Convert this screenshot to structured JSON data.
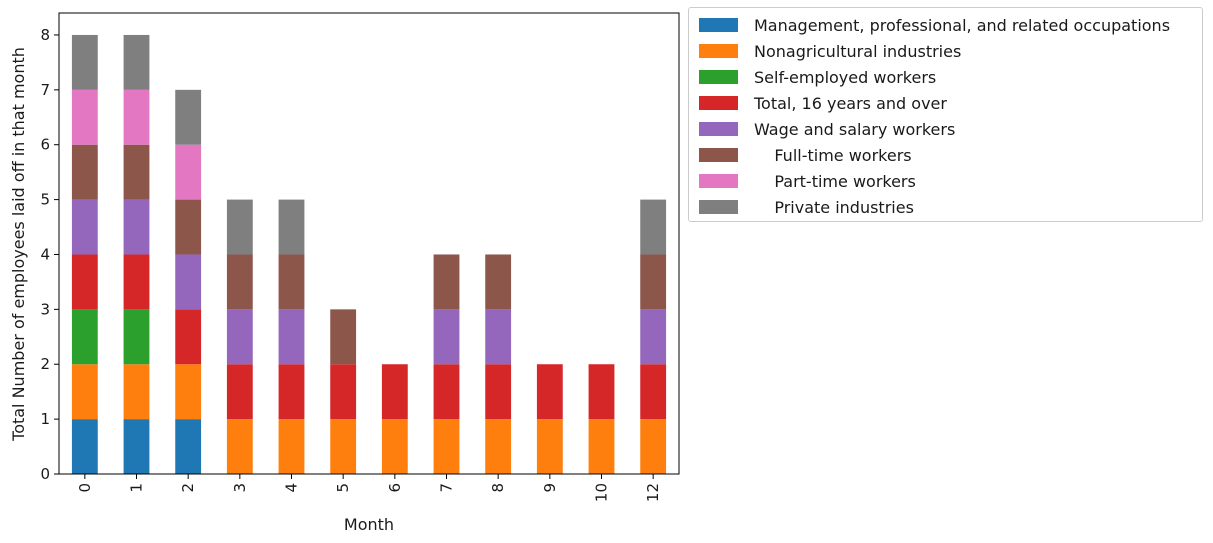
{
  "chart_data": {
    "type": "bar",
    "stacked": true,
    "xlabel": "Month",
    "ylabel": "Total Number of employees laid off in that month",
    "categories": [
      "0",
      "1",
      "2",
      "3",
      "4",
      "5",
      "6",
      "7",
      "8",
      "9",
      "10",
      "12"
    ],
    "ylim": [
      0,
      8.4
    ],
    "yticks": [
      "0",
      "1",
      "2",
      "3",
      "4",
      "5",
      "6",
      "7",
      "8"
    ],
    "legend_position": "outside-right",
    "series": [
      {
        "name": "Management, professional, and related occupations",
        "color": "#1f77b4",
        "values": [
          1,
          1,
          1,
          0,
          0,
          0,
          0,
          0,
          0,
          0,
          0,
          0
        ]
      },
      {
        "name": "Nonagricultural industries",
        "color": "#ff7f0e",
        "values": [
          1,
          1,
          1,
          1,
          1,
          1,
          1,
          1,
          1,
          1,
          1,
          1
        ]
      },
      {
        "name": "Self-employed workers",
        "color": "#2ca02c",
        "values": [
          1,
          1,
          0,
          0,
          0,
          0,
          0,
          0,
          0,
          0,
          0,
          0
        ]
      },
      {
        "name": "Total, 16 years and over",
        "color": "#d62728",
        "values": [
          1,
          1,
          1,
          1,
          1,
          1,
          1,
          1,
          1,
          1,
          1,
          1
        ]
      },
      {
        "name": "Wage and salary workers",
        "color": "#9467bd",
        "values": [
          1,
          1,
          1,
          1,
          1,
          0,
          0,
          1,
          1,
          0,
          0,
          1
        ]
      },
      {
        "name": "    Full-time workers",
        "color": "#8c564b",
        "values": [
          1,
          1,
          1,
          1,
          1,
          1,
          0,
          1,
          1,
          0,
          0,
          1
        ]
      },
      {
        "name": "    Part-time workers",
        "color": "#e377c2",
        "values": [
          1,
          1,
          1,
          0,
          0,
          0,
          0,
          0,
          0,
          0,
          0,
          0
        ]
      },
      {
        "name": "    Private industries",
        "color": "#7f7f7f",
        "values": [
          1,
          1,
          1,
          1,
          1,
          0,
          0,
          0,
          0,
          0,
          0,
          1
        ]
      }
    ]
  }
}
